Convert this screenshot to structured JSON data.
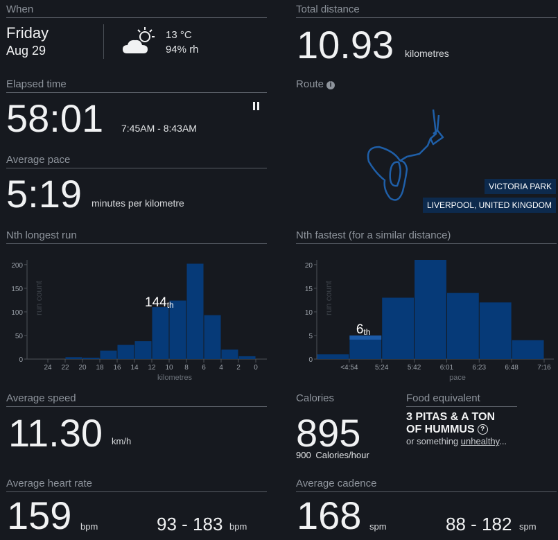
{
  "when": {
    "header": "When",
    "day": "Friday",
    "date": "Aug 29",
    "weather_icon": "partly-cloudy-icon",
    "temperature": "13 °C",
    "humidity": "94% rh"
  },
  "distance": {
    "header": "Total distance",
    "value": "10.93",
    "unit": "kilometres"
  },
  "elapsed": {
    "header": "Elapsed time",
    "value": "58:01",
    "range": "7:45AM - 8:43AM",
    "icon": "pause-icon"
  },
  "pace": {
    "header": "Average pace",
    "value": "5:19",
    "unit": "minutes per kilometre"
  },
  "route": {
    "header": "Route",
    "location1": "VICTORIA PARK",
    "location2": "LIVERPOOL, UNITED KINGDOM"
  },
  "nth_longest": {
    "header": "Nth longest run",
    "rank": "144",
    "rank_suffix": "th"
  },
  "nth_fastest": {
    "header": "Nth fastest (for a similar distance)",
    "rank": "6",
    "rank_suffix": "th"
  },
  "speed": {
    "header": "Average speed",
    "value": "11.30",
    "unit": "km/h"
  },
  "calories": {
    "header": "Calories",
    "value": "895",
    "rate_value": "900",
    "rate_unit": "Calories/hour"
  },
  "food": {
    "header": "Food equivalent",
    "line1": "3 PITAS & A TON",
    "line2": "OF HUMMUS",
    "sub_prefix": "or something",
    "sub_link": "unhealthy",
    "sub_suffix": "..."
  },
  "heart_rate": {
    "header": "Average heart rate",
    "value": "159",
    "unit": "bpm",
    "range": "93 - 183",
    "range_unit": "bpm"
  },
  "cadence": {
    "header": "Average cadence",
    "value": "168",
    "unit": "spm",
    "range": "88 - 182",
    "range_unit": "spm"
  },
  "colors": {
    "bar": "#063a78",
    "highlight": "#1c5aa6",
    "route": "#1f5fa8",
    "background": "#16191f"
  },
  "chart_data": [
    {
      "type": "bar",
      "title": "Nth longest run",
      "xlabel": "kilometres",
      "ylabel": "run count",
      "ylim": [
        0,
        210
      ],
      "yticks": [
        0,
        50,
        100,
        150,
        200
      ],
      "xticks": [
        "24",
        "22",
        "20",
        "18",
        "16",
        "14",
        "12",
        "10",
        "8",
        "6",
        "4",
        "2",
        "0"
      ],
      "categories": [
        "22-20",
        "20-18",
        "18-16",
        "16-14",
        "14-12",
        "12-10",
        "10-8",
        "8-6",
        "6-4",
        "4-2",
        "2-0"
      ],
      "values": [
        4,
        3,
        18,
        30,
        38,
        110,
        124,
        202,
        93,
        20,
        6
      ],
      "highlight_index": 5
    },
    {
      "type": "bar",
      "title": "Nth fastest (for a similar distance)",
      "xlabel": "pace",
      "ylabel": "run count",
      "ylim": [
        0,
        21
      ],
      "yticks": [
        0,
        5,
        10,
        15,
        20
      ],
      "xticks": [
        "<4:54",
        "5:24",
        "5:42",
        "6:01",
        "6:23",
        "6:48",
        "7:16"
      ],
      "categories": [
        "<4:54 (left)",
        "<4:54-5:24",
        "5:24-5:42",
        "5:42-6:01",
        "6:01-6:23",
        "6:23-6:48",
        "6:48-7:16"
      ],
      "values": [
        1,
        5,
        13,
        21,
        14,
        12,
        4
      ],
      "highlight_index": 1
    }
  ]
}
